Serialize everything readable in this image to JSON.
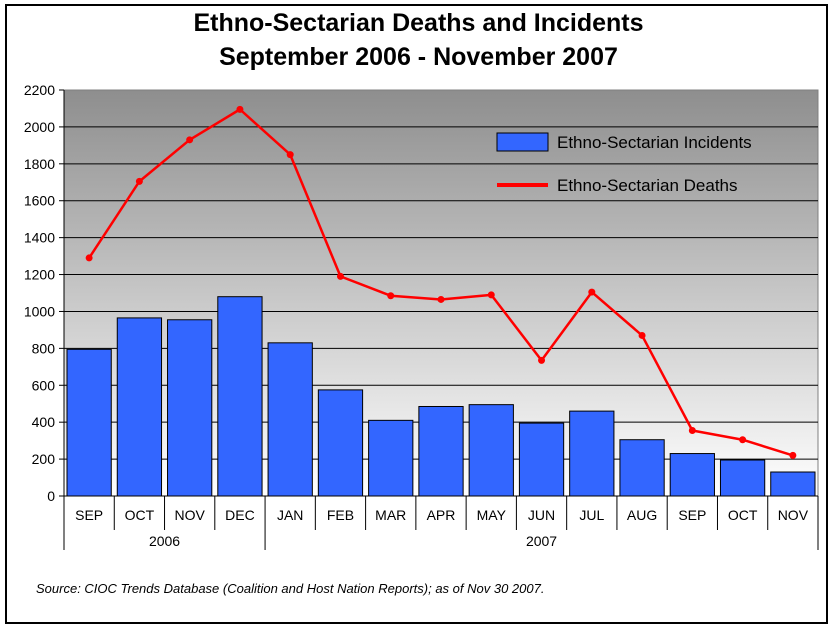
{
  "chart_data": {
    "type": "bar",
    "title_line1": "Ethno-Sectarian Deaths and Incidents",
    "title_line2": "September 2006 - November 2007",
    "categories": [
      "SEP",
      "OCT",
      "NOV",
      "DEC",
      "JAN",
      "FEB",
      "MAR",
      "APR",
      "MAY",
      "JUN",
      "JUL",
      "AUG",
      "SEP",
      "OCT",
      "NOV"
    ],
    "year_groups": [
      {
        "label": "2006",
        "count": 4
      },
      {
        "label": "2007",
        "count": 11
      }
    ],
    "series": [
      {
        "name": "Ethno-Sectarian Incidents",
        "type": "bar",
        "color": "#3366ff",
        "values": [
          795,
          965,
          955,
          1080,
          830,
          575,
          410,
          485,
          495,
          395,
          460,
          305,
          230,
          195,
          130
        ]
      },
      {
        "name": "Ethno-Sectarian Deaths",
        "type": "line",
        "color": "#ff0000",
        "values": [
          1290,
          1705,
          1930,
          2095,
          1850,
          1190,
          1085,
          1065,
          1090,
          735,
          1105,
          870,
          355,
          305,
          220
        ]
      }
    ],
    "ylim": [
      0,
      2200
    ],
    "yticks": [
      0,
      200,
      400,
      600,
      800,
      1000,
      1200,
      1400,
      1600,
      1800,
      2000,
      2200
    ],
    "grid": true,
    "legend_position": "top-right",
    "source_note": "Source:  CIOC Trends Database (Coalition and Host Nation Reports); as of Nov 30 2007."
  }
}
